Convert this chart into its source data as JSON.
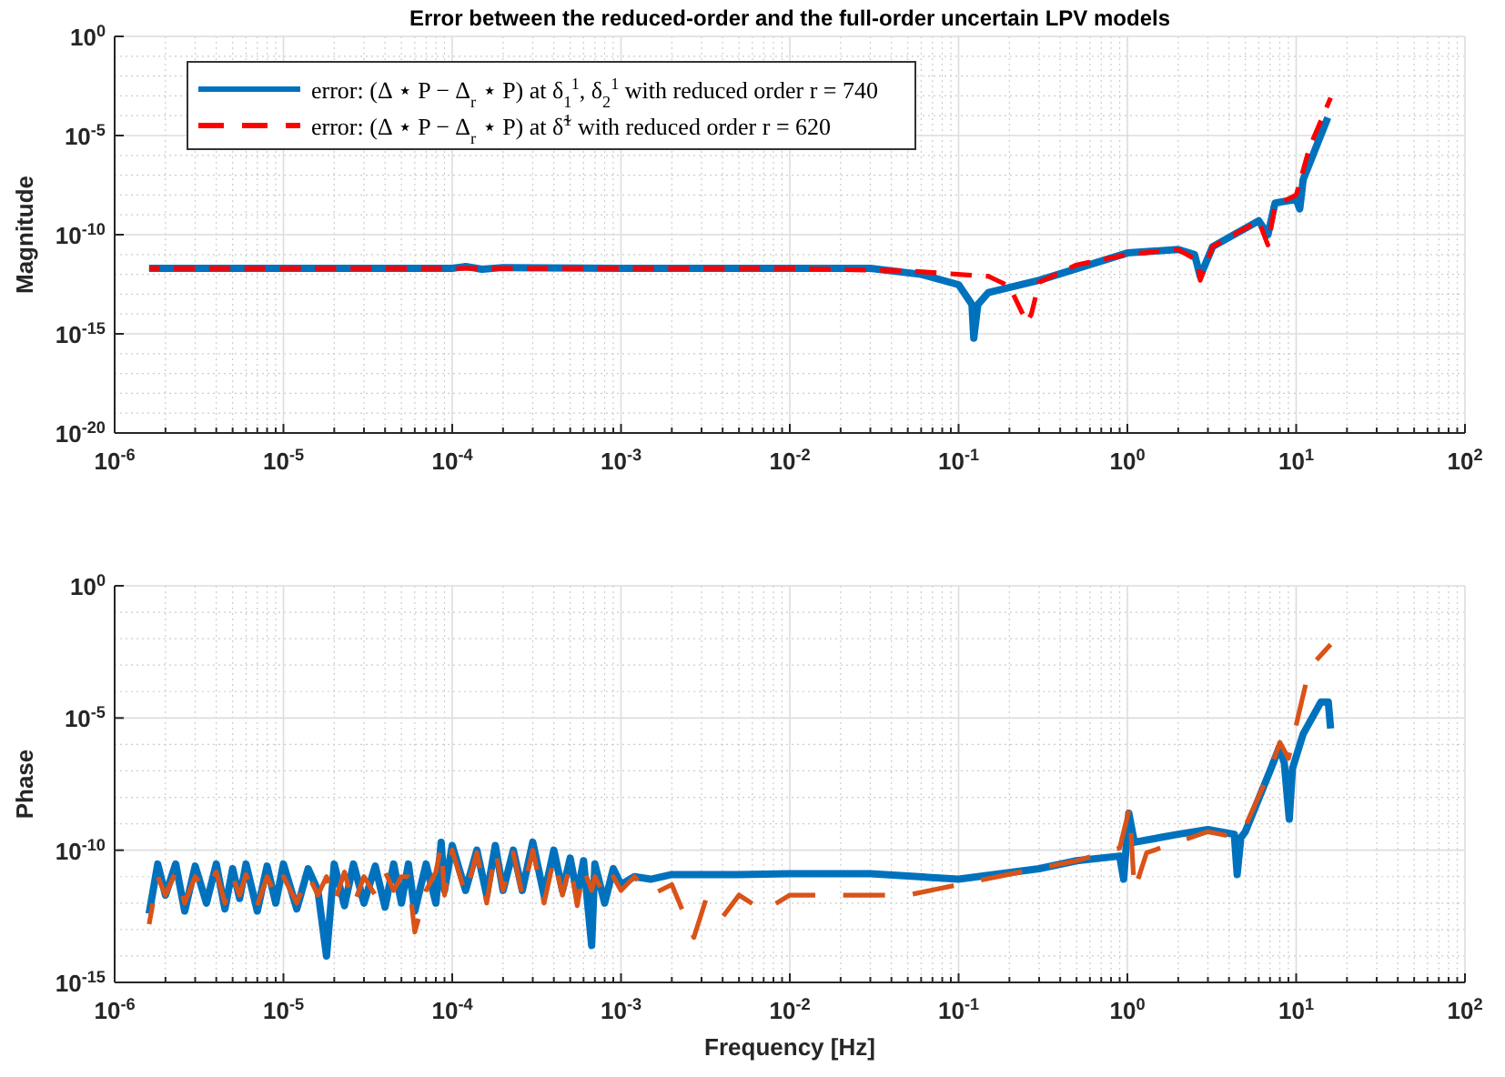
{
  "chart_data": [
    {
      "type": "line",
      "title": "Error between the reduced-order and the full-order uncertain LPV models",
      "ylabel": "Magnitude",
      "log": "xy",
      "grid": true,
      "legend": "top left",
      "xlim": [
        1e-06,
        100
      ],
      "xticks": [
        {
          "value": 1e-06,
          "label": "10$^{-6}$"
        },
        {
          "value": 1e-05,
          "label": "10$^{-5}$"
        },
        {
          "value": 0.0001,
          "label": "10$^{-4}$"
        },
        {
          "value": 0.001,
          "label": "10$^{-3}$"
        },
        {
          "value": 0.01,
          "label": "10$^{-2}$"
        },
        {
          "value": 0.1,
          "label": "10$^{-1}$"
        },
        {
          "value": 1,
          "label": "10$^{0}$"
        },
        {
          "value": 10,
          "label": "10$^{1}$"
        },
        {
          "value": 100,
          "label": "10$^{2}$"
        }
      ],
      "ylim": [
        1e-20,
        1
      ],
      "yticks": [
        {
          "value": 1e-20,
          "label": "10$^{-20}$"
        },
        {
          "value": 1e-15,
          "label": "10$^{-15}$"
        },
        {
          "value": 1e-10,
          "label": "10$^{-10}$"
        },
        {
          "value": 1e-05,
          "label": "10$^{-5}$"
        },
        {
          "value": 1,
          "label": "10$^{0}$"
        }
      ],
      "series": [
        {
          "name": "error: (Δ ⋆ P − Δ$_{r}$ ⋆ P) at δ$_{1}$$^{1}$, δ$_{2}$$^{1}$ with reduced order r = 740",
          "color": "#0072bd",
          "line_style": "solid",
          "x": [
            1.6e-06,
            1e-05,
            0.0001,
            0.00012,
            0.00015,
            0.0002,
            0.001,
            0.01,
            0.03,
            0.06,
            0.1,
            0.12,
            0.123,
            0.13,
            0.15,
            0.3,
            1,
            2,
            2.5,
            2.7,
            3.2,
            6,
            6.8,
            7.5,
            10,
            10.5,
            11,
            15.4
          ],
          "values": [
            2e-12,
            2e-12,
            2e-12,
            2.5e-12,
            1.8e-12,
            2.2e-12,
            2e-12,
            2e-12,
            2e-12,
            1e-12,
            3e-13,
            3e-14,
            6e-16,
            3e-14,
            1.2e-13,
            5e-13,
            1.2e-11,
            1.8e-11,
            1e-11,
            8e-13,
            2.5e-11,
            5e-10,
            1e-10,
            4e-09,
            6e-09,
            2e-09,
            6e-08,
            8e-05
          ]
        },
        {
          "name": "error: (Δ ⋆ P − Δ$_{r}$ ⋆ P) at δ̃$^{1}$ with reduced order r = 620",
          "color": "#ff0000",
          "line_style": "dashed",
          "x": [
            1.6e-06,
            0.0001,
            0.01,
            0.05,
            0.1,
            0.15,
            0.2,
            0.24,
            0.255,
            0.27,
            0.3,
            0.5,
            1,
            2,
            2.6,
            2.7,
            3.2,
            6,
            6.8,
            7.5,
            10,
            12,
            16
          ],
          "values": [
            2e-12,
            2e-12,
            2e-12,
            1.5e-12,
            1e-12,
            8e-13,
            2.5e-13,
            1e-14,
            4e-15,
            1e-14,
            4e-13,
            3e-12,
            1e-11,
            1.8e-11,
            5e-12,
            5e-13,
            2.5e-11,
            5e-10,
            3e-11,
            3e-09,
            1e-08,
            2.5e-06,
            0.0008
          ]
        }
      ]
    },
    {
      "type": "line",
      "xlabel": "Frequency [Hz]",
      "ylabel": "Phase",
      "log": "xy",
      "grid": true,
      "xlim": [
        1e-06,
        100
      ],
      "xticks": [
        {
          "value": 1e-06,
          "label": "10$^{-6}$"
        },
        {
          "value": 1e-05,
          "label": "10$^{-5}$"
        },
        {
          "value": 0.0001,
          "label": "10$^{-4}$"
        },
        {
          "value": 0.001,
          "label": "10$^{-3}$"
        },
        {
          "value": 0.01,
          "label": "10$^{-2}$"
        },
        {
          "value": 0.1,
          "label": "10$^{-1}$"
        },
        {
          "value": 1,
          "label": "10$^{0}$"
        },
        {
          "value": 10,
          "label": "10$^{1}$"
        },
        {
          "value": 100,
          "label": "10$^{2}$"
        }
      ],
      "ylim": [
        1e-15,
        1
      ],
      "yticks": [
        {
          "value": 1e-15,
          "label": "10$^{-15}$"
        },
        {
          "value": 1e-10,
          "label": "10$^{-10}$"
        },
        {
          "value": 1e-05,
          "label": "10$^{-5}$"
        },
        {
          "value": 1,
          "label": "10$^{0}$"
        }
      ],
      "series": [
        {
          "color": "#0072bd",
          "line_style": "solid",
          "x": [
            1.6e-06,
            1.8e-06,
            2e-06,
            2.3e-06,
            2.6e-06,
            3e-06,
            3.5e-06,
            4e-06,
            4.5e-06,
            5e-06,
            5.5e-06,
            6e-06,
            7e-06,
            8e-06,
            9e-06,
            1e-05,
            1.2e-05,
            1.4e-05,
            1.6e-05,
            1.8e-05,
            2e-05,
            2.3e-05,
            2.6e-05,
            3e-05,
            3.5e-05,
            4e-05,
            4.5e-05,
            5e-05,
            5.5e-05,
            6e-05,
            7e-05,
            8e-05,
            8.6e-05,
            9e-05,
            0.0001,
            0.00012,
            0.00014,
            0.00016,
            0.00018,
            0.0002,
            0.00023,
            0.00026,
            0.0003,
            0.00035,
            0.0004,
            0.00045,
            0.0005,
            0.00055,
            0.0006,
            0.00067,
            0.0007,
            0.0008,
            0.0009,
            0.001,
            0.0012,
            0.0015,
            0.002,
            0.005,
            0.01,
            0.03,
            0.1,
            0.3,
            0.5,
            0.9,
            0.95,
            1.02,
            1.1,
            2,
            3,
            4.3,
            4.47,
            4.7,
            5,
            7,
            7.96,
            8.5,
            9.1,
            9.5,
            11,
            14,
            15.5,
            16
          ],
          "values": [
            4e-13,
            3e-11,
            2e-12,
            3e-11,
            5e-13,
            2.5e-11,
            1e-12,
            3e-11,
            6e-13,
            2e-11,
            1.5e-12,
            3e-11,
            5e-13,
            2.5e-11,
            1e-12,
            3e-11,
            6e-13,
            2e-11,
            3e-12,
            1e-14,
            3e-11,
            8e-13,
            3e-11,
            1e-12,
            2.5e-11,
            7e-13,
            3e-11,
            1e-12,
            3e-11,
            5e-13,
            3e-11,
            1e-12,
            2e-10,
            3e-12,
            1.5e-10,
            3e-12,
            1e-10,
            2e-12,
            1.5e-10,
            3e-12,
            1e-10,
            3e-12,
            2e-10,
            2e-12,
            1e-10,
            3e-12,
            5e-11,
            2e-12,
            4e-11,
            2.5e-14,
            3e-11,
            1e-12,
            2e-11,
            5e-12,
            1e-11,
            8e-12,
            1.2e-11,
            1.2e-11,
            1.3e-11,
            1.3e-11,
            8e-12,
            2e-11,
            4e-11,
            6e-11,
            8e-12,
            2.5e-09,
            2e-10,
            4e-10,
            6e-10,
            4e-10,
            1.2e-11,
            3e-10,
            5e-10,
            1e-07,
            8e-07,
            2e-07,
            1.5e-09,
            1.2e-07,
            2.5e-06,
            4e-05,
            4e-05,
            4e-06
          ]
        },
        {
          "color": "#d95319",
          "line_style": "dashed",
          "x": [
            1.6e-06,
            1.8e-06,
            2e-06,
            2.3e-06,
            2.6e-06,
            3e-06,
            3.5e-06,
            4e-06,
            4.5e-06,
            5e-06,
            5.5e-06,
            6e-06,
            7e-06,
            8e-06,
            9e-06,
            1e-05,
            1.2e-05,
            1.4e-05,
            1.6e-05,
            1.8e-05,
            2e-05,
            2.3e-05,
            2.6e-05,
            3e-05,
            3.5e-05,
            4e-05,
            4.5e-05,
            5e-05,
            5.5e-05,
            6e-05,
            7e-05,
            8e-05,
            8.6e-05,
            9e-05,
            0.0001,
            0.00012,
            0.00014,
            0.00016,
            0.00018,
            0.0002,
            0.00023,
            0.00026,
            0.0003,
            0.00035,
            0.0004,
            0.00045,
            0.0005,
            0.00055,
            0.0006,
            0.00067,
            0.0007,
            0.0008,
            0.0009,
            0.001,
            0.0012,
            0.0015,
            0.002,
            0.0027,
            0.0032,
            0.004,
            0.005,
            0.007,
            0.01,
            0.02,
            0.05,
            0.1,
            0.5,
            0.9,
            1.03,
            1.1,
            1.3,
            3,
            4.5,
            5,
            7,
            8,
            9,
            12,
            16
          ],
          "values": [
            1.6e-13,
            1e-11,
            2e-12,
            1.5e-11,
            1e-12,
            1e-11,
            3e-12,
            1.5e-11,
            1e-12,
            1e-11,
            2e-12,
            1.2e-11,
            8e-13,
            1e-11,
            2e-12,
            1e-11,
            1e-12,
            1.2e-11,
            2e-12,
            1e-11,
            1e-12,
            1.5e-11,
            8e-13,
            1e-11,
            2e-12,
            1.5e-11,
            3e-12,
            1e-11,
            1e-11,
            8e-14,
            3e-12,
            1.5e-11,
            1.5e-10,
            2e-12,
            1e-10,
            2e-12,
            8e-11,
            1e-12,
            1e-10,
            3e-12,
            8e-11,
            2e-12,
            1e-10,
            1e-12,
            5e-11,
            2e-12,
            3e-11,
            8e-13,
            2e-11,
            3e-12,
            1e-11,
            2e-12,
            1e-11,
            3e-12,
            1e-11,
            2e-12,
            5e-12,
            5e-14,
            1.5e-12,
            3e-13,
            2e-12,
            5e-13,
            2e-12,
            2e-12,
            2e-12,
            5e-12,
            4e-11,
            1.2e-10,
            4e-09,
            3e-12,
            8e-11,
            5e-10,
            3e-10,
            8e-10,
            1e-07,
            1.2e-06,
            3e-07,
            0.0008,
            0.006
          ]
        }
      ]
    }
  ]
}
